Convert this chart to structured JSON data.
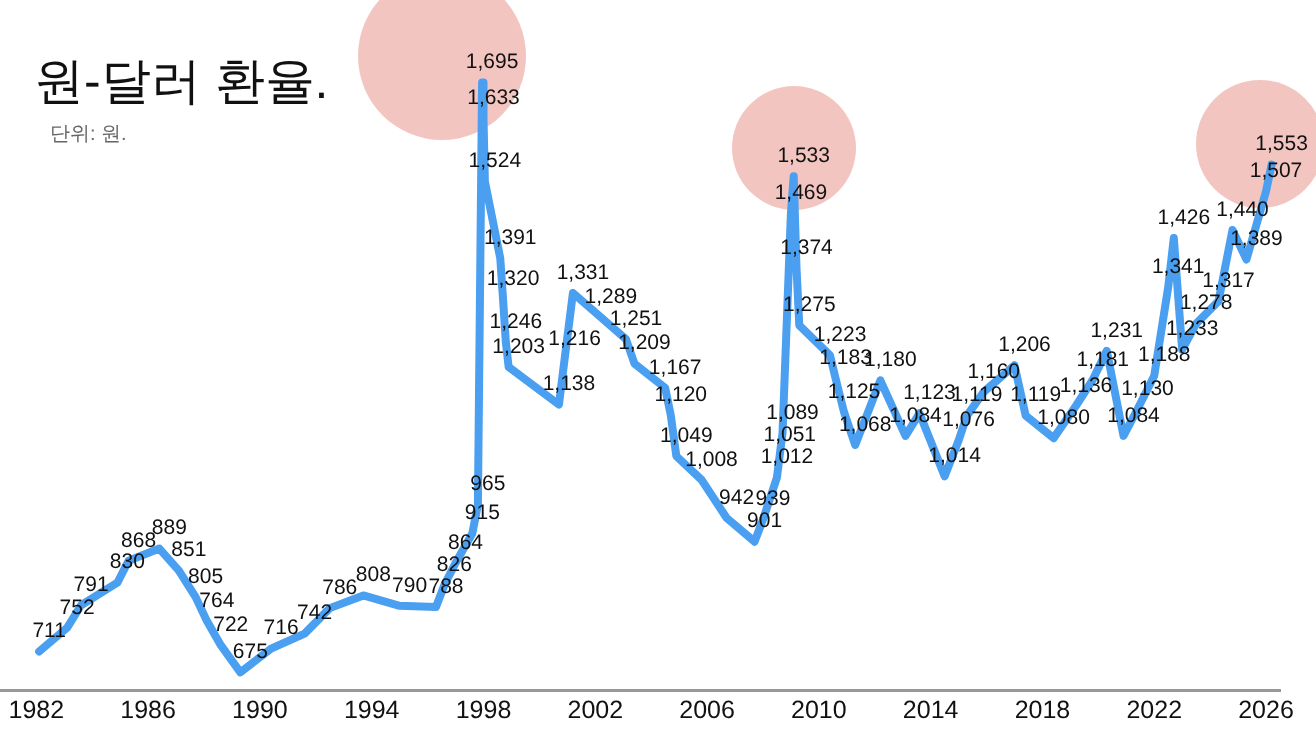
{
  "chart_data": {
    "type": "line",
    "title": "원-달러 환율.",
    "subtitle": "단위: 원.",
    "x": [
      1982.1,
      1983.1,
      1983.6,
      1984.9,
      1985.3,
      1986.4,
      1987.1,
      1987.7,
      1988.1,
      1988.6,
      1989.3,
      1990.4,
      1991.6,
      1992.5,
      1993.7,
      1995.0,
      1996.3,
      1996.6,
      1997.0,
      1997.6,
      1997.8,
      1997.95,
      1998.0,
      1998.05,
      1998.6,
      1998.7,
      1998.8,
      1998.9,
      2000.7,
      2000.9,
      2001.2,
      2002.2,
      2003.1,
      2003.4,
      2004.5,
      2004.7,
      2004.9,
      2005.8,
      2006.7,
      2007.7,
      2008.0,
      2008.5,
      2008.6,
      2008.7,
      2009.0,
      2009.1,
      2009.2,
      2009.3,
      2010.4,
      2010.6,
      2010.9,
      2011.3,
      2012.2,
      2013.1,
      2013.6,
      2014.5,
      2015.0,
      2015.3,
      2015.9,
      2017.0,
      2017.4,
      2018.4,
      2019.2,
      2019.8,
      2020.3,
      2020.9,
      2021.4,
      2022.0,
      2022.5,
      2022.7,
      2023.0,
      2023.5,
      2024.3,
      2024.8,
      2025.3,
      2026.0,
      2026.2
    ],
    "series": [
      {
        "color": "#4a9ff0",
        "values": [
          711,
          752,
          791,
          830,
          868,
          889,
          851,
          805,
          764,
          722,
          675,
          716,
          742,
          786,
          808,
          790,
          788,
          826,
          864,
          915,
          965,
          1695,
          1633,
          1524,
          1391,
          1320,
          1246,
          1203,
          1138,
          1216,
          1331,
          1289,
          1251,
          1209,
          1167,
          1120,
          1049,
          1008,
          942,
          901,
          939,
          1012,
          1051,
          1089,
          1469,
          1533,
          1374,
          1275,
          1223,
          1183,
          1125,
          1068,
          1180,
          1084,
          1123,
          1014,
          1076,
          1119,
          1160,
          1206,
          1119,
          1080,
          1136,
          1181,
          1231,
          1084,
          1130,
          1188,
          1341,
          1426,
          1233,
          1278,
          1317,
          1440,
          1389,
          1507,
          1553
        ],
        "value_labels": [
          "711",
          "752",
          "791",
          "830",
          "868",
          "889",
          "851",
          "805",
          "764",
          "722",
          "675",
          "716",
          "742",
          "786",
          "808",
          "790",
          "788",
          "826",
          "864",
          "915",
          "965",
          "1,695",
          "1,633",
          "1,524",
          "1,391",
          "1,320",
          "1,246",
          "1,203",
          "1,138",
          "1,216",
          "1,331",
          "1,289",
          "1,251",
          "1,209",
          "1,167",
          "1,120",
          "1,049",
          "1,008",
          "942",
          "901",
          "939",
          "1,012",
          "1,051",
          "1,089",
          "1,469",
          "1,533",
          "1,374",
          "1,275",
          "1,223",
          "1,183",
          "1,125",
          "1,068",
          "1,180",
          "1,084",
          "1,123",
          "1,014",
          "1,076",
          "1,119",
          "1,160",
          "1,206",
          "1,119",
          "1,080",
          "1,136",
          "1,181",
          "1,231",
          "1,084",
          "1,130",
          "1,188",
          "1,341",
          "1,426",
          "1,233",
          "1,278",
          "1,317",
          "1,440",
          "1,389",
          "1,507",
          "1,553"
        ]
      }
    ],
    "xlim": [
      1980.7,
      2026.5
    ],
    "xticks": [
      1982,
      1986,
      1990,
      1994,
      1998,
      2002,
      2006,
      2010,
      2014,
      2018,
      2022,
      2026
    ],
    "grid": false,
    "legend": false,
    "marker": "none",
    "line_style": "solid"
  }
}
